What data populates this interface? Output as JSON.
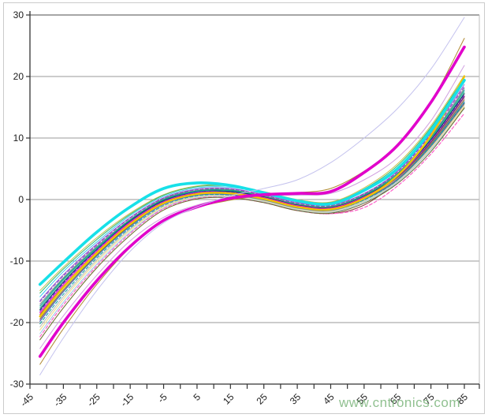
{
  "watermark": "www.cntronics.com",
  "colors": {
    "background": "#ffffff",
    "frame_border": "#cbcbcb",
    "grid_line": "#9a9a9a",
    "top_border": "#4d4d4d",
    "right_border": "#bdbdbd",
    "axis": "#333333",
    "tick_label": "#1c1c1c",
    "watermark_green": "#84ba84"
  },
  "chart_data": {
    "type": "line",
    "title": "",
    "xlabel": "",
    "ylabel": "",
    "legend": "none",
    "grid": "horizontal-only",
    "x_axis": {
      "min": -45,
      "max": 85,
      "tick_step": 5,
      "label_step": 10,
      "tick_labels": [
        "-45",
        "-35",
        "-25",
        "-15",
        "-5",
        "5",
        "15",
        "25",
        "35",
        "45",
        "55",
        "65",
        "75",
        "85"
      ]
    },
    "y_axis": {
      "min": -30,
      "max": 30,
      "tick_step": 10,
      "tick_labels": [
        "30",
        "20",
        "10",
        "0",
        "-10",
        "-20",
        "-30"
      ]
    },
    "x_samples": [
      -42,
      -35,
      -25,
      -15,
      -5,
      5,
      15,
      25,
      35,
      45,
      55,
      65,
      75,
      85
    ],
    "series": [
      {
        "name": "khaki",
        "color": "#c8c050",
        "width": 1,
        "dash": false,
        "y": [
          -14.8,
          -11.0,
          -6.2,
          -2.2,
          0.8,
          2.2,
          2.3,
          1.3,
          0.0,
          -0.4,
          1.9,
          5.8,
          12.0,
          20.2
        ]
      },
      {
        "name": "sea-green",
        "color": "#2eb86e",
        "width": 1,
        "dash": false,
        "y": [
          -15.2,
          -11.3,
          -6.5,
          -2.4,
          0.7,
          2.1,
          2.2,
          1.2,
          -0.1,
          -0.5,
          1.7,
          5.5,
          11.7,
          19.9
        ]
      },
      {
        "name": "sky-blue",
        "color": "#38c8f0",
        "width": 1,
        "dash": false,
        "y": [
          -15.8,
          -11.7,
          -6.9,
          -2.6,
          0.5,
          1.9,
          2.0,
          1.0,
          -0.3,
          -0.7,
          1.3,
          5.1,
          11.3,
          19.1
        ]
      },
      {
        "name": "violet",
        "color": "#9a6ad0",
        "width": 1,
        "dash": false,
        "y": [
          -16.4,
          -12.2,
          -7.2,
          -2.9,
          0.3,
          1.7,
          1.8,
          0.8,
          -0.5,
          -0.9,
          1.0,
          4.6,
          10.8,
          18.7
        ]
      },
      {
        "name": "purple-dashed",
        "color": "#8833cc",
        "width": 1,
        "dash": true,
        "y": [
          -16.6,
          -12.4,
          -7.4,
          -3.0,
          0.2,
          1.6,
          1.7,
          0.7,
          -0.6,
          -1.0,
          0.9,
          4.5,
          10.6,
          18.4
        ]
      },
      {
        "name": "gray",
        "color": "#8a8a8a",
        "width": 1,
        "dash": false,
        "y": [
          -17.0,
          -12.7,
          -7.6,
          -3.2,
          0.1,
          1.5,
          1.6,
          0.6,
          -0.7,
          -1.1,
          0.8,
          4.3,
          10.3,
          18.1
        ]
      },
      {
        "name": "teal",
        "color": "#0e9090",
        "width": 1,
        "dash": false,
        "y": [
          -17.3,
          -12.9,
          -7.8,
          -3.3,
          0.0,
          1.4,
          1.5,
          0.5,
          -0.8,
          -1.2,
          0.7,
          4.2,
          10.1,
          17.8
        ]
      },
      {
        "name": "spring-green",
        "color": "#19c08a",
        "width": 1,
        "dash": false,
        "y": [
          -17.6,
          -13.1,
          -7.9,
          -3.4,
          -0.1,
          1.3,
          1.4,
          0.5,
          -0.8,
          -1.2,
          0.6,
          4.0,
          9.9,
          17.5
        ]
      },
      {
        "name": "navy",
        "color": "#23355f",
        "width": 1.2,
        "dash": false,
        "y": [
          -17.9,
          -13.4,
          -8.1,
          -3.5,
          -0.2,
          1.2,
          1.3,
          0.4,
          -0.9,
          -1.3,
          0.5,
          3.9,
          9.7,
          17.2
        ]
      },
      {
        "name": "blue-dashed",
        "color": "#2244cc",
        "width": 1,
        "dash": true,
        "y": [
          -18.1,
          -13.6,
          -8.2,
          -3.6,
          -0.3,
          1.2,
          1.2,
          0.3,
          -1.0,
          -1.4,
          0.4,
          3.8,
          9.6,
          17.0
        ]
      },
      {
        "name": "magenta-thin",
        "color": "#f320c8",
        "width": 1.4,
        "dash": false,
        "y": [
          -18.4,
          -13.8,
          -8.4,
          -3.7,
          -0.4,
          1.1,
          1.1,
          0.3,
          -1.0,
          -1.4,
          0.4,
          3.7,
          9.4,
          16.8
        ]
      },
      {
        "name": "dark-gray",
        "color": "#4a4a4a",
        "width": 1,
        "dash": false,
        "y": [
          -18.9,
          -14.2,
          -8.7,
          -3.9,
          -0.5,
          1.0,
          1.1,
          0.2,
          -1.1,
          -1.5,
          0.3,
          3.6,
          9.3,
          16.7
        ]
      },
      {
        "name": "plum",
        "color": "#c060c0",
        "width": 1,
        "dash": false,
        "y": [
          -19.6,
          -14.9,
          -9.1,
          -4.3,
          -0.8,
          0.8,
          0.9,
          0.0,
          -1.3,
          -1.7,
          0.1,
          3.4,
          9.1,
          16.5
        ]
      },
      {
        "name": "maroon",
        "color": "#8a4040",
        "width": 1,
        "dash": false,
        "y": [
          -18.7,
          -14.1,
          -8.6,
          -3.9,
          -0.5,
          1.0,
          1.0,
          0.0,
          -1.6,
          -2.3,
          -0.9,
          3.0,
          8.6,
          15.6
        ]
      },
      {
        "name": "olive",
        "color": "#7e7e1e",
        "width": 1,
        "dash": false,
        "y": [
          -19.4,
          -14.7,
          -9.0,
          -4.2,
          -0.7,
          0.8,
          0.9,
          0.0,
          -1.3,
          -1.7,
          0.1,
          3.3,
          9.0,
          16.2
        ]
      },
      {
        "name": "steel-blue",
        "color": "#4f7bbf",
        "width": 1.2,
        "dash": false,
        "y": [
          -19.8,
          -15.0,
          -9.2,
          -4.4,
          -0.8,
          0.7,
          0.8,
          -0.1,
          -1.4,
          -1.8,
          0.0,
          3.2,
          8.8,
          15.9
        ]
      },
      {
        "name": "teal-dashed",
        "color": "#0aa0a0",
        "width": 1,
        "dash": true,
        "y": [
          -20.2,
          -15.4,
          -9.5,
          -4.6,
          -1.0,
          0.6,
          0.7,
          -0.2,
          -1.5,
          -1.9,
          -0.1,
          3.1,
          8.7,
          15.7
        ]
      },
      {
        "name": "silver",
        "color": "#b9b9b9",
        "width": 1,
        "dash": false,
        "y": [
          -20.7,
          -15.8,
          -9.8,
          -4.8,
          -1.1,
          0.5,
          0.6,
          -0.2,
          -1.5,
          -1.9,
          -0.2,
          3.0,
          8.5,
          15.4
        ]
      },
      {
        "name": "pale-yellow",
        "color": "#efe6a0",
        "width": 1.4,
        "dash": false,
        "y": [
          -21.2,
          -16.2,
          -10.1,
          -5.0,
          -1.2,
          0.4,
          0.5,
          -0.3,
          -1.6,
          -2.0,
          -0.3,
          2.9,
          8.3,
          15.1
        ]
      },
      {
        "name": "light-blue",
        "color": "#9cc3e8",
        "width": 1,
        "dash": false,
        "y": [
          -21.8,
          -16.7,
          -10.5,
          -5.3,
          -1.4,
          0.3,
          0.4,
          -0.4,
          -1.7,
          -2.1,
          -0.4,
          2.8,
          8.1,
          14.8
        ]
      },
      {
        "name": "pink-dashed",
        "color": "#ff5fc8",
        "width": 1.2,
        "dash": true,
        "y": [
          -22.3,
          -17.1,
          -10.8,
          -5.5,
          -1.5,
          0.2,
          0.3,
          -0.5,
          -1.8,
          -2.3,
          -1.3,
          2.2,
          7.4,
          14.0
        ]
      },
      {
        "name": "dark-olive",
        "color": "#6b6b2a",
        "width": 1,
        "dash": false,
        "y": [
          -22.8,
          -17.6,
          -11.1,
          -5.8,
          -1.7,
          0.1,
          0.3,
          -0.5,
          -1.8,
          -2.2,
          -0.6,
          2.6,
          7.8,
          14.9
        ]
      },
      {
        "name": "gold-thick",
        "color": "#f2c200",
        "width": 2.4,
        "dash": false,
        "y": [
          -19.0,
          -14.3,
          -8.7,
          -4.0,
          -0.6,
          0.9,
          1.0,
          0.1,
          -1.2,
          -1.6,
          0.2,
          3.9,
          10.4,
          20.0
        ]
      },
      {
        "name": "thistle",
        "color": "#d0a0e0",
        "width": 1,
        "dash": false,
        "y": [
          -24.2,
          -18.9,
          -12.3,
          -6.7,
          -2.9,
          -0.9,
          0.3,
          0.7,
          0.7,
          1.0,
          3.2,
          6.8,
          12.8,
          21.8
        ]
      },
      {
        "name": "cyan-thick",
        "color": "#17e0e8",
        "width": 3.6,
        "dash": false,
        "y": [
          -13.8,
          -10.2,
          -5.3,
          -1.2,
          1.8,
          2.7,
          2.3,
          1.1,
          -0.2,
          -0.7,
          1.5,
          5.0,
          11.2,
          19.4
        ]
      },
      {
        "name": "tan-gold-steep",
        "color": "#b08830",
        "width": 1,
        "dash": false,
        "y": [
          -26.8,
          -21.0,
          -13.8,
          -7.8,
          -3.5,
          -1.3,
          -0.1,
          0.7,
          1.1,
          1.8,
          4.6,
          8.8,
          15.8,
          26.2
        ]
      },
      {
        "name": "magenta-thick",
        "color": "#e100cb",
        "width": 3.6,
        "dash": false,
        "y": [
          -25.5,
          -20.0,
          -13.2,
          -7.6,
          -3.4,
          -1.2,
          0.2,
          0.8,
          1.0,
          1.3,
          4.4,
          8.8,
          15.8,
          24.8
        ]
      },
      {
        "name": "lavender-steep",
        "color": "#c4c2ee",
        "width": 1,
        "dash": false,
        "y": [
          -28.5,
          -22.5,
          -14.8,
          -8.4,
          -3.8,
          -1.2,
          0.6,
          1.8,
          3.2,
          6.0,
          10.0,
          14.8,
          21.2,
          29.6
        ]
      }
    ]
  }
}
